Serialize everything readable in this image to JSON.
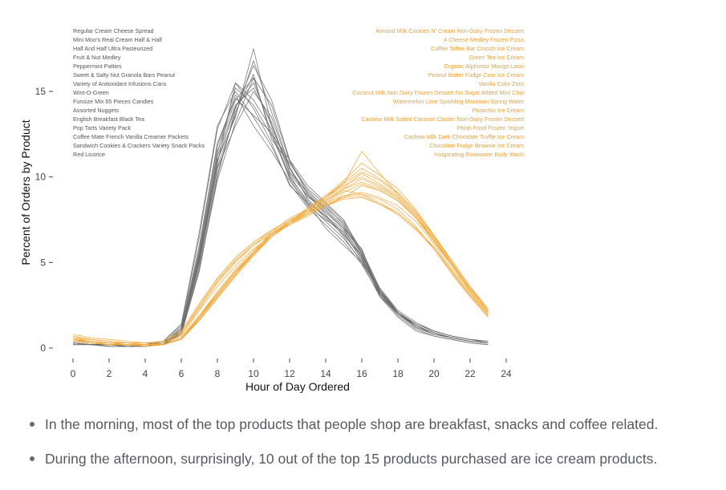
{
  "chart_data": {
    "type": "line",
    "title": "",
    "xlabel": "Hour of Day Ordered",
    "ylabel": "Percent of Orders by Product",
    "xlim": [
      0,
      24
    ],
    "ylim": [
      0,
      16
    ],
    "x_ticks": [
      "0",
      "2",
      "4",
      "6",
      "8",
      "10",
      "12",
      "14",
      "16",
      "18",
      "20",
      "22",
      "24"
    ],
    "y_ticks": [
      "0",
      "5",
      "10",
      "15"
    ],
    "grid": false,
    "legend_position": "top, inside plot (left and right columns)",
    "x": [
      0,
      1,
      2,
      3,
      4,
      5,
      6,
      7,
      8,
      9,
      10,
      11,
      12,
      13,
      14,
      15,
      16,
      17,
      18,
      19,
      20,
      21,
      22,
      23
    ],
    "groups": [
      {
        "color": "#6b6b6b",
        "legend_color": "#555555",
        "series": [
          {
            "name": "Regular Cream Cheese Spread",
            "values": [
              0.3,
              0.2,
              0.2,
              0.1,
              0.1,
              0.2,
              0.9,
              5.5,
              11.5,
              14.5,
              15.8,
              12.5,
              11.0,
              9.5,
              8.5,
              7.5,
              5.5,
              3.0,
              2.0,
              1.2,
              0.8,
              0.6,
              0.4,
              0.3
            ]
          },
          {
            "name": "Mini Moo's Real Cream Half & Half",
            "values": [
              0.5,
              0.3,
              0.2,
              0.2,
              0.2,
              0.4,
              1.3,
              6.5,
              12.8,
              15.5,
              14.0,
              12.0,
              9.5,
              8.5,
              7.0,
              6.0,
              5.0,
              3.5,
              2.2,
              1.5,
              1.0,
              0.7,
              0.5,
              0.4
            ]
          },
          {
            "name": "Half And Half Ultra Pasteurized",
            "values": [
              0.4,
              0.3,
              0.2,
              0.2,
              0.1,
              0.3,
              1.0,
              5.0,
              11.0,
              13.5,
              17.5,
              13.0,
              10.5,
              9.0,
              8.0,
              7.0,
              5.8,
              3.2,
              2.0,
              1.3,
              0.9,
              0.6,
              0.4,
              0.3
            ]
          },
          {
            "name": "Fruit & Nut Medley",
            "values": [
              0.2,
              0.2,
              0.1,
              0.1,
              0.1,
              0.2,
              0.8,
              4.5,
              10.0,
              14.0,
              16.5,
              14.5,
              11.0,
              9.0,
              7.8,
              6.5,
              5.0,
              3.0,
              1.8,
              1.0,
              0.7,
              0.5,
              0.3,
              0.2
            ]
          },
          {
            "name": "Peppermint Patties",
            "values": [
              0.3,
              0.2,
              0.2,
              0.1,
              0.1,
              0.2,
              0.9,
              5.0,
              10.5,
              13.0,
              15.0,
              13.5,
              10.5,
              8.8,
              8.3,
              7.2,
              5.5,
              3.4,
              2.1,
              1.4,
              1.0,
              0.7,
              0.5,
              0.3
            ]
          },
          {
            "name": "Sweet & Salty Nut Granola Bars Peanut",
            "values": [
              0.3,
              0.2,
              0.2,
              0.1,
              0.2,
              0.3,
              1.1,
              5.8,
              11.8,
              14.8,
              13.0,
              11.5,
              9.8,
              8.3,
              7.5,
              6.8,
              5.2,
              3.3,
              2.0,
              1.3,
              0.8,
              0.6,
              0.4,
              0.3
            ]
          },
          {
            "name": "Variety of Anitoxidant Infusions Cans",
            "values": [
              0.4,
              0.3,
              0.2,
              0.2,
              0.2,
              0.3,
              1.0,
              5.2,
              10.8,
              15.5,
              14.5,
              12.8,
              10.0,
              8.6,
              7.6,
              6.6,
              5.4,
              3.3,
              2.1,
              1.4,
              1.0,
              0.7,
              0.5,
              0.4
            ]
          },
          {
            "name": "Wint-O-Green",
            "values": [
              0.3,
              0.2,
              0.1,
              0.1,
              0.1,
              0.2,
              0.8,
              4.8,
              10.2,
              13.8,
              16.0,
              12.2,
              10.8,
              9.2,
              8.2,
              7.3,
              5.6,
              3.4,
              2.0,
              1.2,
              0.8,
              0.6,
              0.4,
              0.3
            ]
          },
          {
            "name": "Funsize Mix 65 Pieces Candies",
            "values": [
              0.2,
              0.2,
              0.1,
              0.1,
              0.1,
              0.2,
              0.9,
              5.4,
              11.2,
              14.2,
              15.2,
              13.2,
              10.2,
              8.9,
              7.9,
              7.0,
              5.3,
              3.1,
              1.9,
              1.1,
              0.7,
              0.5,
              0.3,
              0.2
            ]
          },
          {
            "name": "Assorted Nuggets",
            "values": [
              0.4,
              0.3,
              0.2,
              0.2,
              0.2,
              0.3,
              1.2,
              6.0,
              12.0,
              14.6,
              13.6,
              12.6,
              9.9,
              8.4,
              7.4,
              6.4,
              5.1,
              3.2,
              2.0,
              1.3,
              0.9,
              0.6,
              0.4,
              0.3
            ]
          },
          {
            "name": "English Breakfast Black Tea",
            "values": [
              0.5,
              0.4,
              0.3,
              0.2,
              0.2,
              0.4,
              1.4,
              6.8,
              13.0,
              15.0,
              13.5,
              11.8,
              9.6,
              8.2,
              7.2,
              6.2,
              4.9,
              3.1,
              2.0,
              1.4,
              1.0,
              0.7,
              0.5,
              0.4
            ]
          },
          {
            "name": "Pop Tarts Variety Pack",
            "values": [
              0.3,
              0.2,
              0.2,
              0.1,
              0.1,
              0.2,
              0.9,
              5.1,
              10.6,
              13.6,
              16.8,
              13.8,
              10.6,
              8.7,
              7.7,
              6.9,
              5.4,
              3.3,
              2.0,
              1.2,
              0.8,
              0.6,
              0.4,
              0.3
            ]
          },
          {
            "name": "Coffee Mate French Vanilla Creamer Packets",
            "values": [
              0.4,
              0.3,
              0.2,
              0.2,
              0.2,
              0.3,
              1.1,
              5.6,
              11.4,
              15.2,
              14.2,
              12.4,
              10.1,
              8.5,
              7.7,
              6.7,
              5.2,
              3.2,
              2.1,
              1.3,
              0.9,
              0.6,
              0.4,
              0.3
            ]
          },
          {
            "name": "Sandwich Cookies & Crackers Variety Snack Packs",
            "values": [
              0.3,
              0.2,
              0.2,
              0.1,
              0.1,
              0.2,
              1.0,
              5.3,
              10.9,
              14.1,
              15.5,
              13.0,
              10.3,
              9.1,
              8.1,
              7.1,
              5.5,
              3.3,
              2.0,
              1.2,
              0.8,
              0.6,
              0.4,
              0.3
            ]
          },
          {
            "name": "Red Licorice",
            "values": [
              0.3,
              0.2,
              0.1,
              0.1,
              0.1,
              0.2,
              0.8,
              4.6,
              9.8,
              13.2,
              15.8,
              14.2,
              10.9,
              9.3,
              8.4,
              7.4,
              5.7,
              3.5,
              2.1,
              1.3,
              0.9,
              0.6,
              0.4,
              0.3
            ]
          }
        ]
      },
      {
        "color": "#F0AA3C",
        "legend_color": "#E8A13A",
        "series": [
          {
            "name": "Almond Milk Cookies N' Cream Non-Dairy Frozen Dessert",
            "values": [
              0.5,
              0.4,
              0.3,
              0.3,
              0.2,
              0.2,
              0.5,
              1.8,
              3.2,
              4.5,
              5.5,
              6.5,
              7.2,
              7.8,
              8.3,
              8.8,
              9.5,
              9.2,
              8.6,
              7.6,
              6.2,
              4.8,
              3.3,
              2.0
            ]
          },
          {
            "name": "4 Cheese Medley Frozen Pizza",
            "values": [
              0.6,
              0.4,
              0.3,
              0.3,
              0.2,
              0.3,
              0.7,
              2.2,
              3.6,
              4.8,
              5.8,
              6.6,
              7.3,
              7.9,
              8.6,
              9.2,
              9.0,
              8.7,
              8.1,
              7.1,
              5.8,
              4.3,
              3.0,
              1.8
            ]
          },
          {
            "name": "Coffee Toffee Bar Crunch Ice Cream",
            "values": [
              0.4,
              0.3,
              0.2,
              0.2,
              0.2,
              0.2,
              0.5,
              1.7,
              3.0,
              4.3,
              5.6,
              6.8,
              7.6,
              8.1,
              8.7,
              9.4,
              10.2,
              9.6,
              8.9,
              7.8,
              6.4,
              4.9,
              3.4,
              2.1
            ]
          },
          {
            "name": "Green Tea Ice Cream",
            "values": [
              0.5,
              0.4,
              0.3,
              0.2,
              0.2,
              0.2,
              0.6,
              1.9,
              3.3,
              4.6,
              5.7,
              6.7,
              7.4,
              8.2,
              8.9,
              9.6,
              11.5,
              10.2,
              9.0,
              7.9,
              6.6,
              5.0,
              3.5,
              2.2
            ]
          },
          {
            "name": "Organic Alphonso Mango Lassi",
            "values": [
              0.6,
              0.5,
              0.4,
              0.3,
              0.3,
              0.3,
              0.8,
              2.3,
              3.8,
              5.0,
              6.0,
              6.7,
              7.2,
              7.7,
              8.3,
              8.9,
              9.1,
              8.8,
              8.3,
              7.4,
              6.1,
              4.6,
              3.2,
              1.9
            ]
          },
          {
            "name": "Peanut Butter Fudge Core Ice Cream",
            "values": [
              0.4,
              0.3,
              0.2,
              0.2,
              0.1,
              0.2,
              0.5,
              1.6,
              2.9,
              4.2,
              5.4,
              6.5,
              7.3,
              8.0,
              8.8,
              9.7,
              10.5,
              9.9,
              9.1,
              8.0,
              6.5,
              5.1,
              3.6,
              2.3
            ]
          },
          {
            "name": "Vanilla Coke Zero",
            "values": [
              0.7,
              0.5,
              0.4,
              0.3,
              0.3,
              0.4,
              0.9,
              2.5,
              4.0,
              5.2,
              6.1,
              6.9,
              7.5,
              8.0,
              8.5,
              8.9,
              9.0,
              8.5,
              7.9,
              7.0,
              5.9,
              4.5,
              3.1,
              1.9
            ]
          },
          {
            "name": "Coconut Milk Non Dairy Frozen Dessert No Sugar Added Mint Chip",
            "values": [
              0.5,
              0.3,
              0.3,
              0.2,
              0.2,
              0.2,
              0.6,
              1.8,
              3.1,
              4.4,
              5.6,
              6.6,
              7.3,
              7.9,
              8.6,
              9.3,
              9.9,
              9.4,
              8.8,
              7.7,
              6.3,
              4.9,
              3.4,
              2.1
            ]
          },
          {
            "name": "Watermelon Lime Sparkling Mountain Spring Water",
            "values": [
              0.8,
              0.6,
              0.5,
              0.4,
              0.3,
              0.4,
              1.0,
              2.6,
              4.1,
              5.3,
              6.2,
              6.9,
              7.4,
              7.9,
              8.4,
              8.8,
              8.9,
              8.4,
              7.8,
              6.9,
              5.8,
              4.4,
              3.0,
              1.8
            ]
          },
          {
            "name": "Pistachio Ice Cream",
            "values": [
              0.4,
              0.3,
              0.2,
              0.2,
              0.2,
              0.2,
              0.5,
              1.7,
              3.1,
              4.4,
              5.5,
              6.6,
              7.4,
              8.1,
              8.8,
              9.5,
              10.0,
              9.5,
              8.8,
              7.7,
              6.4,
              4.9,
              3.4,
              2.1
            ]
          },
          {
            "name": "Cashew Milk Salted Caramel Cluster Non-Dairy Frozen Dessert",
            "values": [
              0.5,
              0.4,
              0.3,
              0.2,
              0.2,
              0.2,
              0.6,
              1.9,
              3.2,
              4.5,
              5.6,
              6.6,
              7.3,
              7.9,
              8.5,
              9.1,
              9.6,
              9.2,
              8.6,
              7.6,
              6.3,
              4.8,
              3.3,
              2.0
            ]
          },
          {
            "name": "Phish Food Frozen Yogurt",
            "values": [
              0.4,
              0.3,
              0.2,
              0.2,
              0.1,
              0.2,
              0.5,
              1.6,
              2.9,
              4.2,
              5.4,
              6.5,
              7.3,
              8.1,
              8.9,
              9.8,
              10.8,
              10.1,
              9.3,
              8.1,
              6.6,
              5.1,
              3.6,
              2.2
            ]
          },
          {
            "name": "Cashew Milk Dark Chocolate Truffle Ice Cream",
            "values": [
              0.5,
              0.4,
              0.3,
              0.2,
              0.2,
              0.2,
              0.6,
              1.8,
              3.2,
              4.5,
              5.6,
              6.6,
              7.3,
              7.9,
              8.6,
              9.3,
              9.7,
              9.3,
              8.7,
              7.6,
              6.3,
              4.8,
              3.3,
              2.0
            ]
          },
          {
            "name": "Chocolate Fudge Brownie Ice Cream",
            "values": [
              0.4,
              0.3,
              0.2,
              0.2,
              0.1,
              0.2,
              0.5,
              1.7,
              3.0,
              4.3,
              5.5,
              6.6,
              7.4,
              8.1,
              8.8,
              9.6,
              10.3,
              9.8,
              9.0,
              7.9,
              6.5,
              5.0,
              3.5,
              2.2
            ]
          },
          {
            "name": "Invigorating Rosewater Body Wash",
            "values": [
              0.7,
              0.5,
              0.4,
              0.3,
              0.3,
              0.4,
              0.9,
              2.4,
              3.9,
              5.1,
              6.0,
              6.8,
              7.3,
              7.8,
              8.3,
              8.7,
              8.8,
              8.4,
              7.9,
              7.0,
              5.9,
              4.5,
              3.1,
              1.9
            ]
          }
        ]
      }
    ]
  },
  "notes": {
    "bullets": [
      "In the morning, most of the top products that people shop are breakfast, snacks and coffee related.",
      "During the afternoon, surprisingly, 10 out of the top 15 products purchased are ice cream products."
    ]
  }
}
